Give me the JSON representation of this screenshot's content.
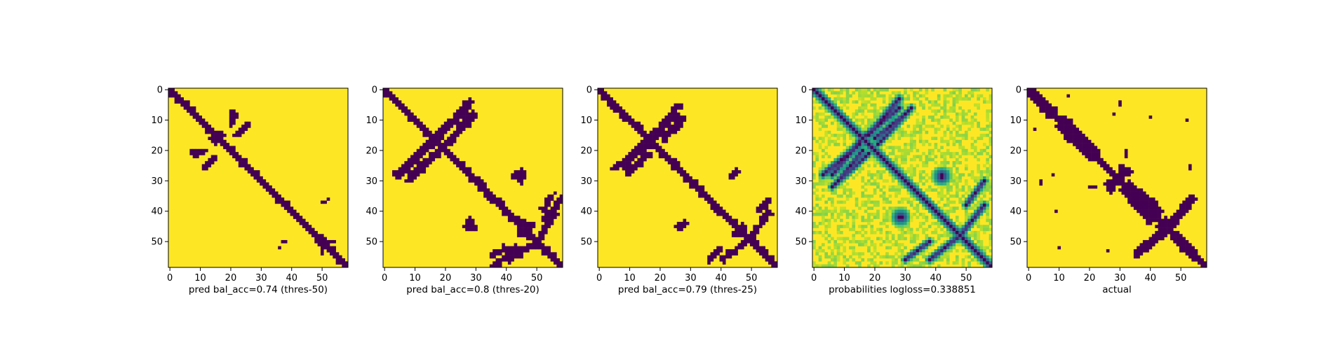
{
  "colors": {
    "low": "#440154",
    "high": "#fde725",
    "axis": "#000000"
  },
  "chart_data": [
    {
      "type": "heatmap",
      "colormap": "viridis",
      "value_type": "binary",
      "xlabel": "pred bal_acc=0.74 (thres-50)",
      "title": "",
      "ylabel": "",
      "xlim": [
        0,
        58
      ],
      "ylim": [
        58,
        0
      ],
      "x_ticks": [
        "0",
        "10",
        "20",
        "30",
        "40",
        "50"
      ],
      "y_ticks": [
        "0",
        "10",
        "20",
        "30",
        "40",
        "50"
      ],
      "diagonal_band_halfwidth": 1.3,
      "noise_threshold": 0.82,
      "features": [
        {
          "shape": "blob",
          "x": 16,
          "y": 15,
          "rx": 2.5,
          "ry": 2
        },
        {
          "shape": "segment",
          "from": [
            20,
            12
          ],
          "to": [
            22,
            8
          ],
          "halfwidth": 0.6
        },
        {
          "shape": "segment",
          "from": [
            7,
            21
          ],
          "to": [
            10,
            20
          ],
          "halfwidth": 0.6
        },
        {
          "shape": "segment",
          "from": [
            11,
            26
          ],
          "to": [
            15,
            22
          ],
          "halfwidth": 0.5
        },
        {
          "shape": "blob",
          "x": 49,
          "y": 50,
          "rx": 1.5,
          "ry": 1.5
        },
        {
          "shape": "blob",
          "x": 50,
          "y": 53,
          "rx": 1,
          "ry": 1.5
        },
        {
          "shape": "blob",
          "x": 36,
          "y": 52,
          "rx": 0.6,
          "ry": 1
        },
        {
          "shape": "blob",
          "x": 50,
          "y": 37,
          "rx": 0.8,
          "ry": 0.8
        }
      ]
    },
    {
      "type": "heatmap",
      "colormap": "viridis",
      "value_type": "binary",
      "xlabel": "pred bal_acc=0.8 (thres-20)",
      "title": "",
      "ylabel": "",
      "xlim": [
        0,
        58
      ],
      "ylim": [
        58,
        0
      ],
      "x_ticks": [
        "0",
        "10",
        "20",
        "30",
        "40",
        "50"
      ],
      "y_ticks": [
        "0",
        "10",
        "20",
        "30",
        "40",
        "50"
      ],
      "diagonal_band_halfwidth": 1.5,
      "noise_threshold": 0.72,
      "features": [
        {
          "shape": "segment",
          "from": [
            17,
            15
          ],
          "to": [
            27,
            6
          ],
          "halfwidth": 0.9
        },
        {
          "shape": "segment",
          "from": [
            22,
            16
          ],
          "to": [
            28,
            8
          ],
          "halfwidth": 0.8
        },
        {
          "shape": "segment",
          "from": [
            4,
            28
          ],
          "to": [
            15,
            18
          ],
          "halfwidth": 0.9
        },
        {
          "shape": "segment",
          "from": [
            8,
            30
          ],
          "to": [
            18,
            20
          ],
          "halfwidth": 0.8
        },
        {
          "shape": "blob",
          "x": 17,
          "y": 16,
          "rx": 2.5,
          "ry": 2
        },
        {
          "shape": "blob",
          "x": 44,
          "y": 28,
          "rx": 2.5,
          "ry": 1.5
        },
        {
          "shape": "blob",
          "x": 28,
          "y": 45,
          "rx": 2.5,
          "ry": 1.5
        },
        {
          "shape": "blob",
          "x": 46,
          "y": 47,
          "rx": 3,
          "ry": 2
        },
        {
          "shape": "segment",
          "from": [
            40,
            52
          ],
          "to": [
            35,
            55
          ],
          "halfwidth": 0.8
        },
        {
          "shape": "segment",
          "from": [
            50,
            50
          ],
          "to": [
            56,
            41
          ],
          "halfwidth": 0.9
        },
        {
          "shape": "segment",
          "from": [
            52,
            43
          ],
          "to": [
            58,
            36
          ],
          "halfwidth": 0.7
        }
      ]
    },
    {
      "type": "heatmap",
      "colormap": "viridis",
      "value_type": "binary",
      "xlabel": "pred bal_acc=0.79 (thres-25)",
      "title": "",
      "ylabel": "",
      "xlim": [
        0,
        58
      ],
      "ylim": [
        58,
        0
      ],
      "x_ticks": [
        "0",
        "10",
        "20",
        "30",
        "40",
        "50"
      ],
      "y_ticks": [
        "0",
        "10",
        "20",
        "30",
        "40",
        "50"
      ],
      "diagonal_band_halfwidth": 1.4,
      "noise_threshold": 0.76,
      "features": [
        {
          "shape": "segment",
          "from": [
            17,
            15
          ],
          "to": [
            26,
            8
          ],
          "halfwidth": 0.8
        },
        {
          "shape": "segment",
          "from": [
            21,
            15
          ],
          "to": [
            27,
            10
          ],
          "halfwidth": 0.6
        },
        {
          "shape": "segment",
          "from": [
            5,
            26
          ],
          "to": [
            15,
            18
          ],
          "halfwidth": 0.8
        },
        {
          "shape": "segment",
          "from": [
            9,
            28
          ],
          "to": [
            17,
            21
          ],
          "halfwidth": 0.6
        },
        {
          "shape": "blob",
          "x": 17,
          "y": 16,
          "rx": 2.5,
          "ry": 2
        },
        {
          "shape": "blob",
          "x": 44,
          "y": 28,
          "rx": 1.5,
          "ry": 1.2
        },
        {
          "shape": "blob",
          "x": 27,
          "y": 45,
          "rx": 2,
          "ry": 1.2
        },
        {
          "shape": "blob",
          "x": 46,
          "y": 47,
          "rx": 2.5,
          "ry": 1.8
        },
        {
          "shape": "segment",
          "from": [
            49,
            50
          ],
          "to": [
            56,
            40
          ],
          "halfwidth": 0.8
        },
        {
          "shape": "segment",
          "from": [
            40,
            52
          ],
          "to": [
            36,
            56
          ],
          "halfwidth": 0.7
        }
      ]
    },
    {
      "type": "heatmap",
      "colormap": "viridis",
      "value_type": "probability",
      "xlabel": "probabilities logloss=0.338851",
      "title": "",
      "ylabel": "",
      "xlim": [
        0,
        58
      ],
      "ylim": [
        58,
        0
      ],
      "x_ticks": [
        "0",
        "10",
        "20",
        "30",
        "40",
        "50"
      ],
      "y_ticks": [
        "0",
        "10",
        "20",
        "30",
        "40",
        "50"
      ],
      "diagonal_band_halfwidth": 1.6,
      "features": [
        {
          "shape": "segment",
          "from": [
            16,
            16
          ],
          "to": [
            28,
            6
          ],
          "halfwidth": 1.2
        },
        {
          "shape": "segment",
          "from": [
            20,
            16
          ],
          "to": [
            30,
            8
          ],
          "halfwidth": 1.0
        },
        {
          "shape": "segment",
          "from": [
            3,
            28
          ],
          "to": [
            15,
            18
          ],
          "halfwidth": 1.2
        },
        {
          "shape": "segment",
          "from": [
            6,
            32
          ],
          "to": [
            18,
            21
          ],
          "halfwidth": 1.0
        },
        {
          "shape": "blob",
          "x": 42,
          "y": 29,
          "rx": 3,
          "ry": 2.5
        },
        {
          "shape": "blob",
          "x": 28,
          "y": 42,
          "rx": 2.5,
          "ry": 3
        },
        {
          "shape": "segment",
          "from": [
            48,
            48
          ],
          "to": [
            56,
            38
          ],
          "halfwidth": 1.1
        },
        {
          "shape": "segment",
          "from": [
            38,
            50
          ],
          "to": [
            30,
            56
          ],
          "halfwidth": 1.0
        },
        {
          "shape": "blob",
          "x": 47,
          "y": 47,
          "rx": 2,
          "ry": 2
        }
      ]
    },
    {
      "type": "heatmap",
      "colormap": "viridis",
      "value_type": "binary",
      "xlabel": "actual",
      "title": "",
      "ylabel": "",
      "xlim": [
        0,
        58
      ],
      "ylim": [
        58,
        0
      ],
      "x_ticks": [
        "0",
        "10",
        "20",
        "30",
        "40",
        "50"
      ],
      "y_ticks": [
        "0",
        "10",
        "20",
        "30",
        "40",
        "50"
      ],
      "diagonal_band_halfwidth": 1.3,
      "noise_threshold": 0.9,
      "features": [
        {
          "shape": "segment",
          "from": [
            0,
            1
          ],
          "to": [
            8,
            7
          ],
          "halfwidth": 1.6
        },
        {
          "shape": "segment",
          "from": [
            12,
            10
          ],
          "to": [
            22,
            20
          ],
          "halfwidth": 1.4
        },
        {
          "shape": "segment",
          "from": [
            26,
            31
          ],
          "to": [
            33,
            27
          ],
          "halfwidth": 1.0
        },
        {
          "shape": "blob",
          "x": 28,
          "y": 30,
          "rx": 1.5,
          "ry": 1.5
        },
        {
          "shape": "segment",
          "from": [
            31,
            33
          ],
          "to": [
            40,
            43
          ],
          "halfwidth": 1.2
        },
        {
          "shape": "blob",
          "x": 44,
          "y": 45,
          "rx": 2.5,
          "ry": 2
        },
        {
          "shape": "segment",
          "from": [
            47,
            45
          ],
          "to": [
            54,
            36
          ],
          "halfwidth": 1.0
        },
        {
          "shape": "segment",
          "from": [
            36,
            53
          ],
          "to": [
            43,
            47
          ],
          "halfwidth": 0.9
        },
        {
          "shape": "segment",
          "from": [
            48,
            49
          ],
          "to": [
            57,
            57
          ],
          "halfwidth": 1.2
        },
        {
          "shape": "blob",
          "x": 21,
          "y": 32,
          "rx": 1.5,
          "ry": 0.6
        },
        {
          "shape": "blob",
          "x": 4,
          "y": 30,
          "rx": 1,
          "ry": 1
        },
        {
          "shape": "blob",
          "x": 26,
          "y": 53,
          "rx": 1,
          "ry": 0.8
        },
        {
          "shape": "blob",
          "x": 10,
          "y": 52,
          "rx": 0.5,
          "ry": 1
        },
        {
          "shape": "blob",
          "x": 28,
          "y": 8,
          "rx": 0.5,
          "ry": 1
        },
        {
          "shape": "blob",
          "x": 40,
          "y": 9,
          "rx": 0.6,
          "ry": 0.6
        },
        {
          "shape": "blob",
          "x": 2,
          "y": 13,
          "rx": 0.6,
          "ry": 0.6
        }
      ]
    }
  ]
}
